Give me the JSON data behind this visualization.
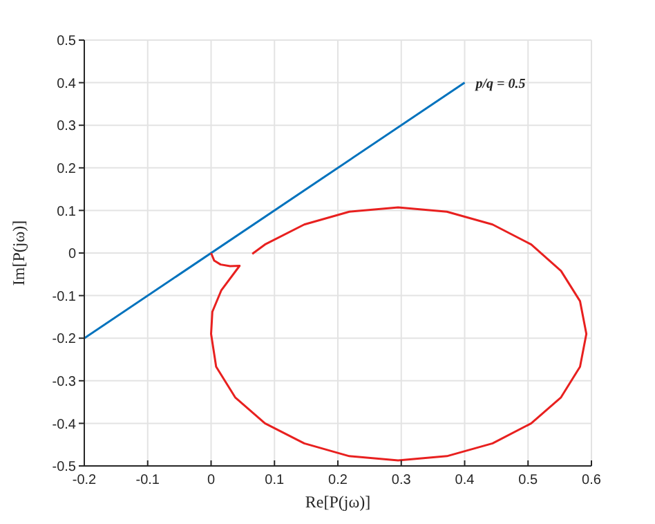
{
  "chart_data": {
    "type": "line",
    "xlabel": "Re[P(jω)]",
    "ylabel": "Im[P(jω)]",
    "xlim": [
      -0.2,
      0.6
    ],
    "xticks": [
      -0.2,
      -0.1,
      0,
      0.1,
      0.2,
      0.3,
      0.4,
      0.5,
      0.6
    ],
    "ylim": [
      -0.5,
      0.5
    ],
    "yticks": [
      -0.5,
      -0.4,
      -0.3,
      -0.2,
      -0.1,
      0,
      0.1,
      0.2,
      0.3,
      0.4,
      0.5
    ],
    "grid": true,
    "annotations": [
      {
        "text": "p/q = 0.5",
        "x": 0.4,
        "y": 0.4
      }
    ],
    "series": [
      {
        "color": "#0072bd",
        "x": [
          -0.2,
          0.4
        ],
        "values": [
          -0.2,
          0.4
        ]
      },
      {
        "color": "#e8201f",
        "x": [
          0,
          0.005,
          0.015,
          0.03,
          0.045,
          0.016,
          0.002,
          0,
          0.008,
          0.038,
          0.085,
          0.147,
          0.218,
          0.295,
          0.372,
          0.444,
          0.505,
          0.552,
          0.582,
          0.592,
          0.582,
          0.552,
          0.505,
          0.444,
          0.372,
          0.295,
          0.218,
          0.147,
          0.085,
          0.065
        ],
        "values": [
          0,
          -0.018,
          -0.027,
          -0.031,
          -0.03,
          -0.088,
          -0.138,
          -0.19,
          -0.267,
          -0.339,
          -0.4,
          -0.447,
          -0.477,
          -0.487,
          -0.477,
          -0.447,
          -0.4,
          -0.339,
          -0.267,
          -0.19,
          -0.113,
          -0.042,
          0.02,
          0.067,
          0.097,
          0.107,
          0.097,
          0.067,
          0.02,
          -0.002
        ]
      }
    ]
  }
}
